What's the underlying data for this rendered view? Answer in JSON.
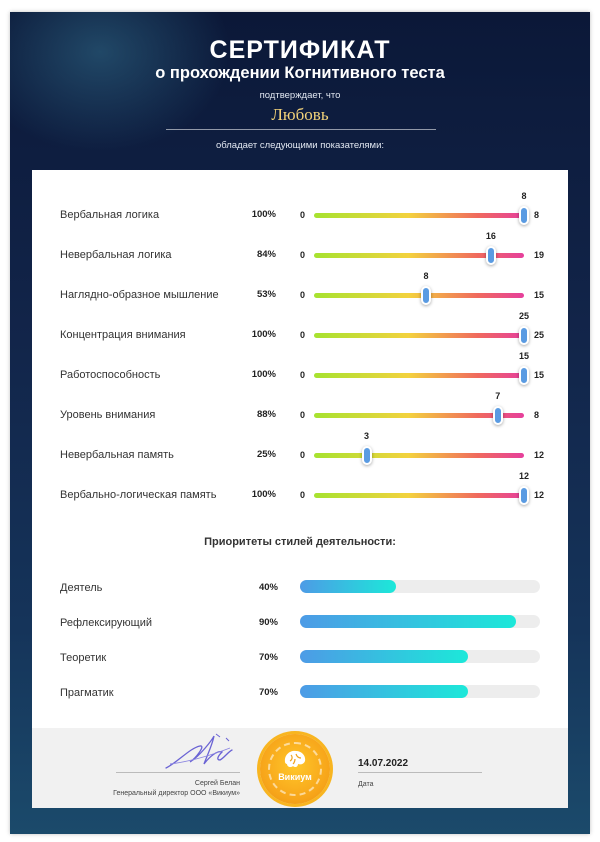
{
  "header": {
    "title": "СЕРТИФИКАТ",
    "subtitle": "о прохождении Когнитивного теста",
    "confirms": "подтверждает, что",
    "name": "Любовь",
    "possesses": "обладает следующими показателями:"
  },
  "metrics": [
    {
      "label": "Вербальная логика",
      "percent": "100%",
      "min": "0",
      "value": "8",
      "max": "8"
    },
    {
      "label": "Невербальная логика",
      "percent": "84%",
      "min": "0",
      "value": "16",
      "max": "19"
    },
    {
      "label": "Наглядно-образное мышление",
      "percent": "53%",
      "min": "0",
      "value": "8",
      "max": "15"
    },
    {
      "label": "Концентрация внимания",
      "percent": "100%",
      "min": "0",
      "value": "25",
      "max": "25"
    },
    {
      "label": "Работоспособность",
      "percent": "100%",
      "min": "0",
      "value": "15",
      "max": "15"
    },
    {
      "label": "Уровень внимания",
      "percent": "88%",
      "min": "0",
      "value": "7",
      "max": "8"
    },
    {
      "label": "Невербальная память",
      "percent": "25%",
      "min": "0",
      "value": "3",
      "max": "12"
    },
    {
      "label": "Вербально-логическая память",
      "percent": "100%",
      "min": "0",
      "value": "12",
      "max": "12"
    }
  ],
  "priorities": {
    "title": "Приоритеты стилей деятельности:",
    "items": [
      {
        "label": "Деятель",
        "percent": "40%",
        "fill": 40
      },
      {
        "label": "Рефлексирующий",
        "percent": "90%",
        "fill": 90
      },
      {
        "label": "Теоретик",
        "percent": "70%",
        "fill": 70
      },
      {
        "label": "Прагматик",
        "percent": "70%",
        "fill": 70
      }
    ]
  },
  "footer": {
    "signer_name": "Сергей Белан",
    "signer_role": "Генеральный директор ООО «Викиум»",
    "medal_text": "Викиум",
    "date": "14.07.2022",
    "date_label": "Дата"
  },
  "colors": {
    "background_top": "#0b1838",
    "background_bottom": "#1b4a6b",
    "name": "#f3d37a",
    "slider_knob": "#5a9be2",
    "priority_fill_start": "#4d9be6",
    "priority_fill_end": "#1ce8d9",
    "medal": "#f7a51a"
  },
  "icons": {
    "signature": "handwritten-signature",
    "medal_logo": "brain-logo"
  }
}
